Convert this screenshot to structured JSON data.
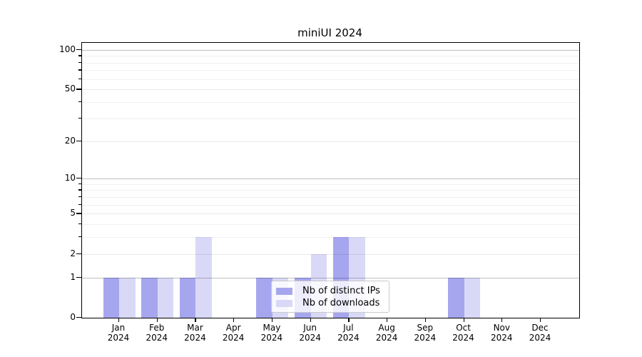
{
  "figure": {
    "title": "miniUI 2024",
    "background_color": "#ffffff"
  },
  "chart_data": {
    "type": "bar",
    "title": "miniUI 2024",
    "categories": [
      "Jan 2024",
      "Feb 2024",
      "Mar 2024",
      "Apr 2024",
      "May 2024",
      "Jun 2024",
      "Jul 2024",
      "Aug 2024",
      "Sep 2024",
      "Oct 2024",
      "Nov 2024",
      "Dec 2024"
    ],
    "series": [
      {
        "name": "Nb of distinct IPs",
        "color": "#a6a6ef",
        "values": [
          1,
          1,
          1,
          0,
          1,
          1,
          3,
          0,
          0,
          1,
          0,
          0
        ]
      },
      {
        "name": "Nb of downloads",
        "color": "#d9d9f7",
        "values": [
          1,
          1,
          3,
          0,
          1,
          2,
          3,
          0,
          0,
          1,
          0,
          0
        ]
      }
    ],
    "xlabel": "",
    "ylabel": "",
    "yscale": "log10(1+y)",
    "ylim": [
      0,
      113
    ],
    "yticks": [
      0,
      1,
      2,
      5,
      10,
      20,
      50,
      100
    ],
    "emphasized_gridlines": [
      1,
      10,
      100
    ],
    "light_gridlines": [
      2,
      5,
      20,
      50
    ],
    "minor_gridlines": [
      3,
      4,
      6,
      7,
      8,
      9,
      30,
      40,
      60,
      70,
      80,
      90
    ],
    "grid": true,
    "legend_position": "lower center-left inside plot",
    "colors": {
      "spine": "#000000",
      "grid_emphasized": "rgba(0,0,0,0.25)",
      "grid_light": "rgba(0,0,0,0.09)",
      "grid_minor": "rgba(0,0,0,0.06)",
      "legend_border": "#c9c9c9"
    }
  }
}
